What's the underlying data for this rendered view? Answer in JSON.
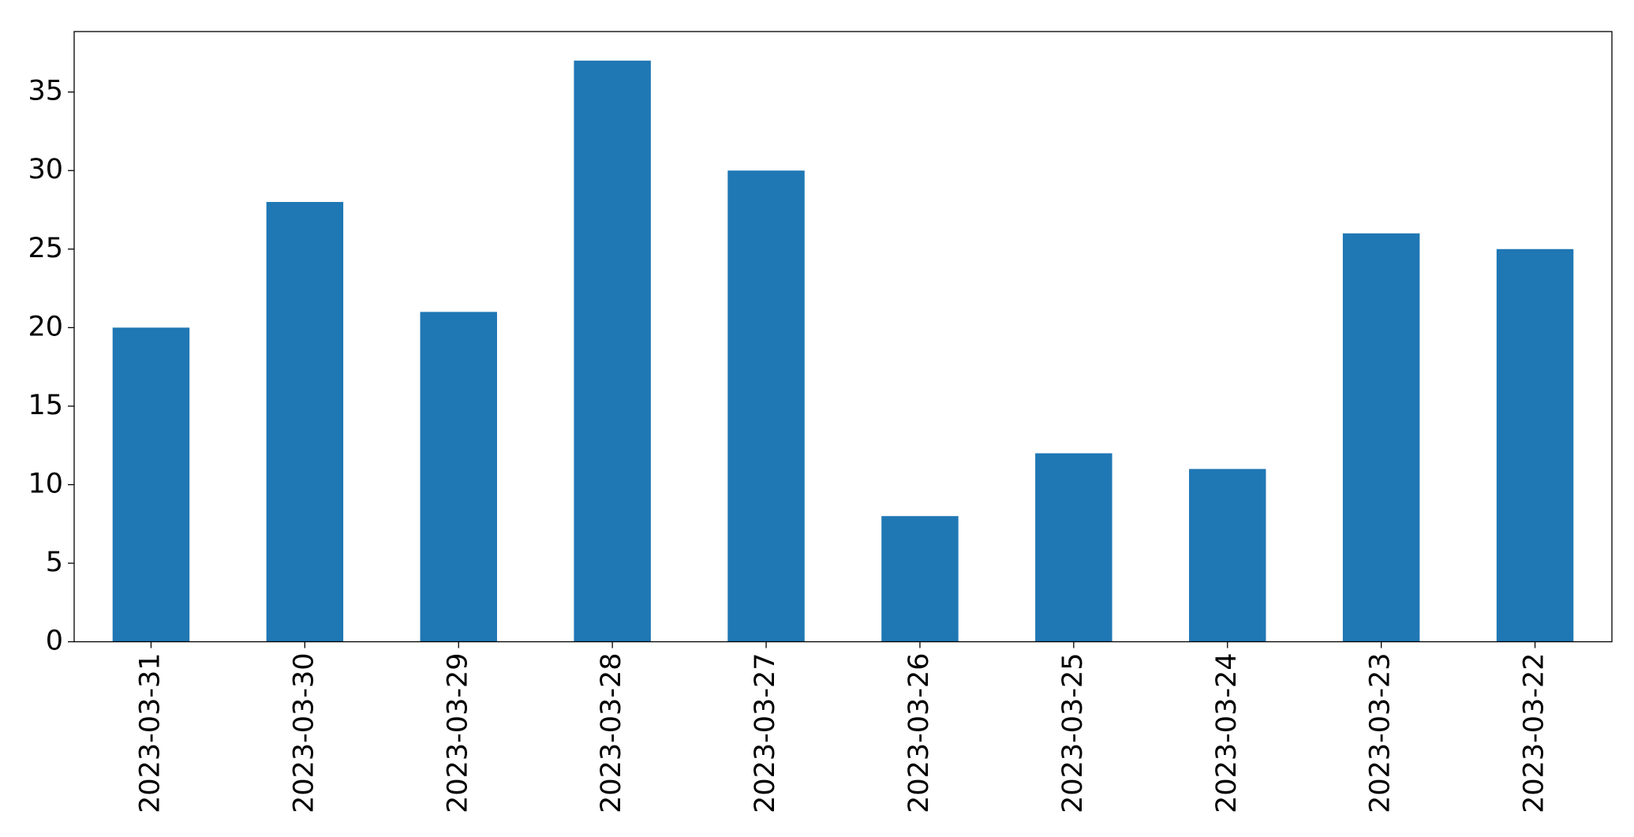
{
  "chart_data": {
    "type": "bar",
    "categories": [
      "2023-03-31",
      "2023-03-30",
      "2023-03-29",
      "2023-03-28",
      "2023-03-27",
      "2023-03-26",
      "2023-03-25",
      "2023-03-24",
      "2023-03-23",
      "2023-03-22"
    ],
    "values": [
      20,
      28,
      21,
      37,
      30,
      8,
      12,
      11,
      26,
      25
    ],
    "color": "#1f77b4",
    "ylim": [
      0,
      38.85
    ],
    "yticks": [
      0,
      5,
      10,
      15,
      20,
      25,
      30,
      35
    ],
    "grid": false
  }
}
